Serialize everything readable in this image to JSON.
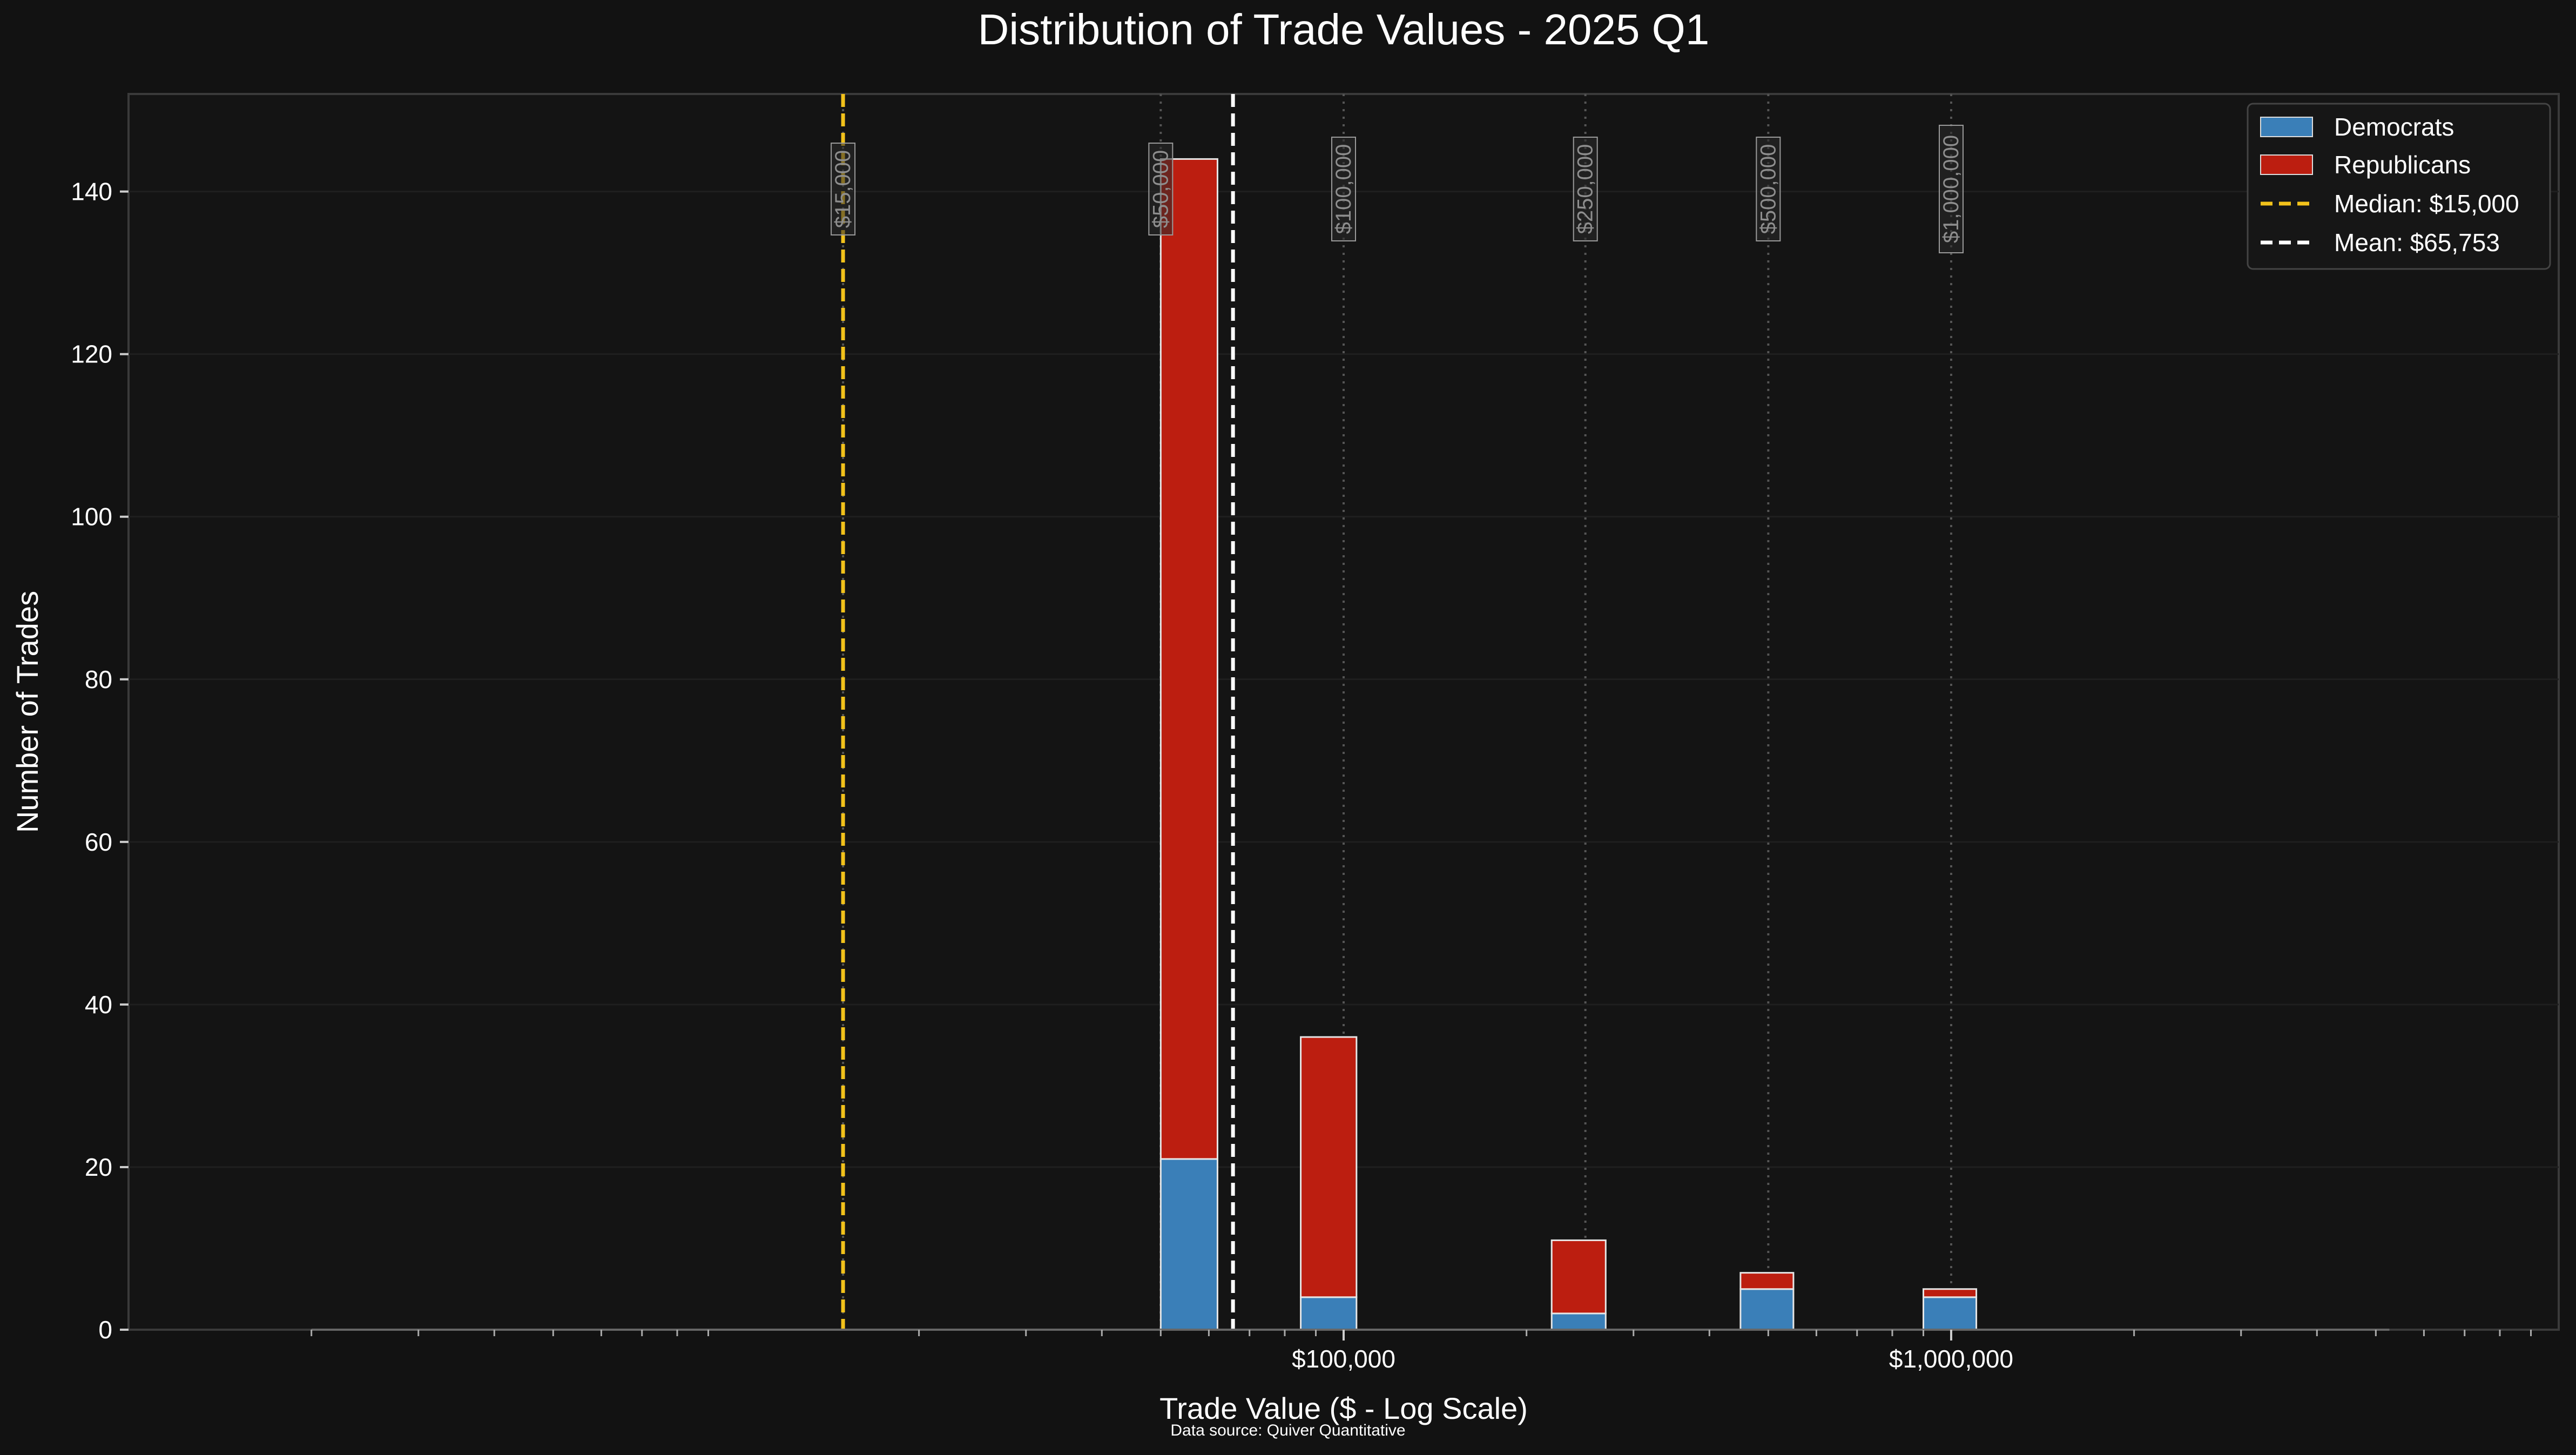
{
  "chart_data": {
    "type": "bar",
    "title": "Distribution of Trade Values - 2025 Q1",
    "xlabel": "Trade Value ($ - Log Scale)",
    "ylabel": "Number of Trades",
    "source": "Data source: Quiver Quantitative",
    "x_scale": "log",
    "stacked": true,
    "xlim": [
      1000,
      10000000
    ],
    "ylim": [
      0,
      152
    ],
    "grid": true,
    "legend_position": "top-right",
    "x_ticks": [
      {
        "value": 100000,
        "label": "$100,000"
      },
      {
        "value": 1000000,
        "label": "$1,000,000"
      }
    ],
    "y_ticks": [
      0,
      20,
      40,
      60,
      80,
      100,
      120,
      140
    ],
    "bins": [
      {
        "x0": 50000,
        "x1": 62000
      },
      {
        "x0": 85000,
        "x1": 105000
      },
      {
        "x0": 220000,
        "x1": 270000
      },
      {
        "x0": 450000,
        "x1": 550000
      },
      {
        "x0": 900000,
        "x1": 1100000
      }
    ],
    "series": [
      {
        "name": "Democrats",
        "color": "#3a7fb8",
        "values": [
          21,
          4,
          2,
          5,
          4
        ]
      },
      {
        "name": "Republicans",
        "color": "#bc1e10",
        "values": [
          123,
          32,
          9,
          2,
          1
        ]
      }
    ],
    "reference_lines": [
      {
        "name": "Median: $15,000",
        "value": 15000,
        "color": "#f2c21b"
      },
      {
        "name": "Mean: $65,753",
        "value": 65753,
        "color": "#ffffff"
      }
    ],
    "value_markers": [
      {
        "value": 15000,
        "label": "$15,000"
      },
      {
        "value": 50000,
        "label": "$50,000"
      },
      {
        "value": 100000,
        "label": "$100,000"
      },
      {
        "value": 250000,
        "label": "$250,000"
      },
      {
        "value": 500000,
        "label": "$500,000"
      },
      {
        "value": 1000000,
        "label": "$1,000,000"
      }
    ]
  }
}
